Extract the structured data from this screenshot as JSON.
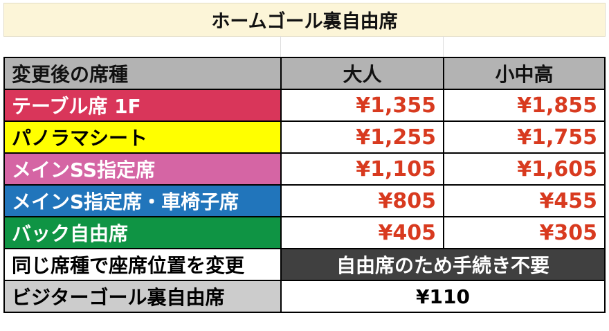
{
  "title": "ホームゴール裏自由席",
  "header": {
    "seat_type": "変更後の席種",
    "adult": "大人",
    "child": "小中高"
  },
  "rows": [
    {
      "label": "テーブル席 1F",
      "adult": "¥1,355",
      "child": "¥1,855",
      "color": "#d9365a",
      "text_color": "#ffffff"
    },
    {
      "label": "パノラマシート",
      "adult": "¥1,255",
      "child": "¥1,755",
      "color": "#ffff00",
      "text_color": "#000000"
    },
    {
      "label": "メインSS指定席",
      "adult": "¥1,105",
      "child": "¥1,605",
      "color": "#d565a4",
      "text_color": "#ffffff"
    },
    {
      "label": "メインS指定席・車椅子席",
      "adult": "¥805",
      "child": "¥455",
      "color": "#2175bb",
      "text_color": "#ffffff"
    },
    {
      "label": "バック自由席",
      "adult": "¥405",
      "child": "¥305",
      "color": "#0f9444",
      "text_color": "#ffffff"
    }
  ],
  "same_seat": {
    "label": "同じ席種で座席位置を変更",
    "value": "自由席のため手続き不要"
  },
  "visitor": {
    "label": "ビジターゴール裏自由席",
    "value": "¥110"
  },
  "colors": {
    "price": "#d83a1f",
    "header_bg": "#b3b3b3",
    "title_bg": "#fcf5d8",
    "dark_bg": "#404040"
  }
}
